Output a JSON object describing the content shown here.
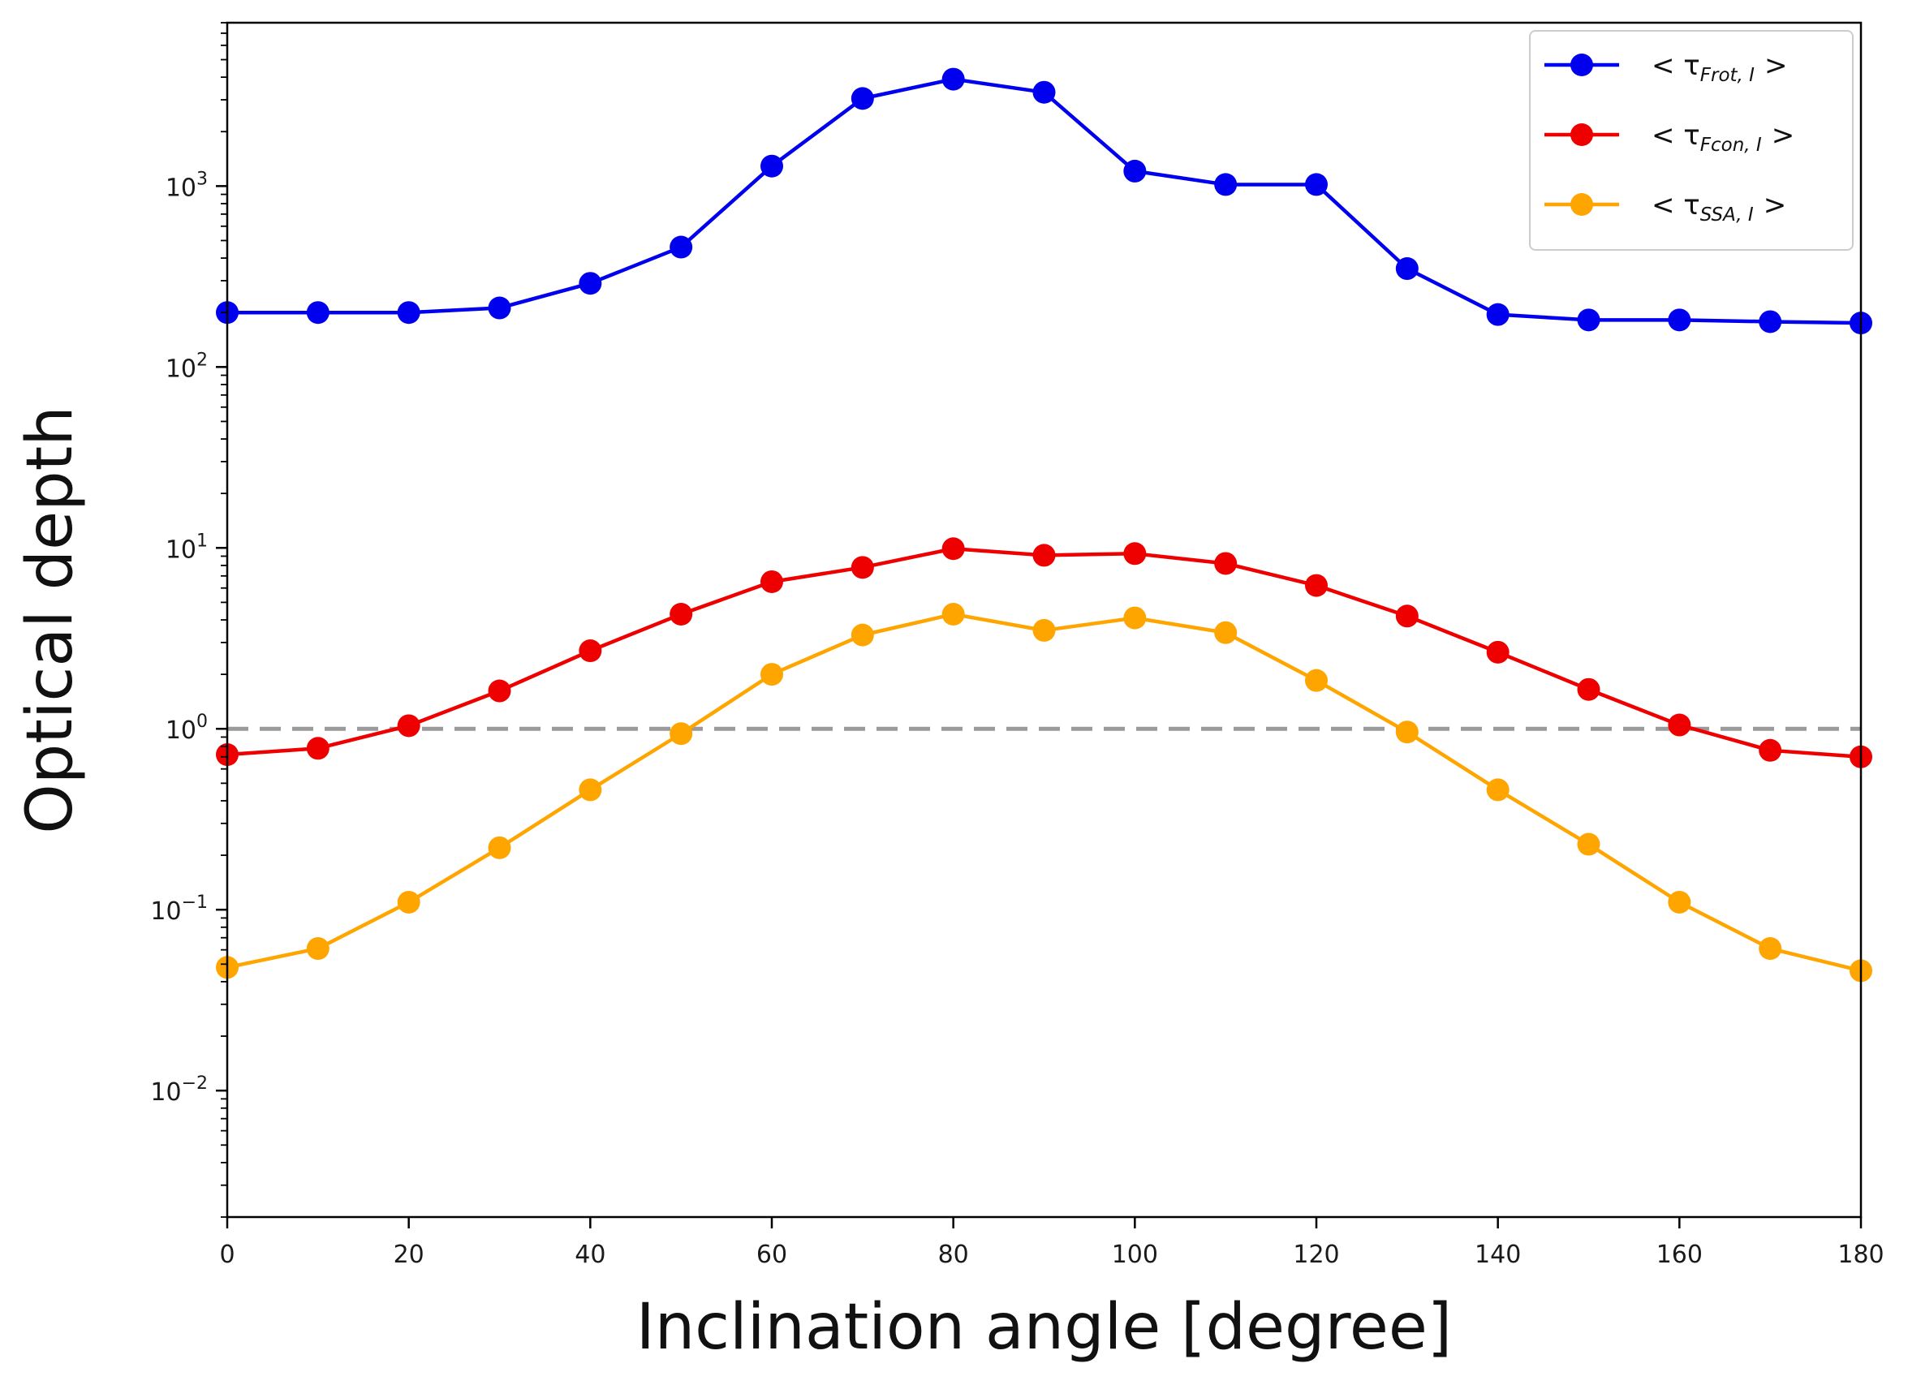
{
  "chart_data": {
    "type": "line",
    "title": "",
    "xlabel": "Inclination angle [degree]",
    "ylabel": "Optical depth",
    "yscale": "log",
    "xlim": [
      0,
      180
    ],
    "ylim": [
      0.002,
      8000
    ],
    "grid": false,
    "legend_position": "top-right",
    "x_ticks": [
      "0",
      "20",
      "40",
      "60",
      "80",
      "100",
      "120",
      "140",
      "160",
      "180"
    ],
    "y_ticks": [
      {
        "base": "10",
        "exp": "−2"
      },
      {
        "base": "10",
        "exp": "−1"
      },
      {
        "base": "10",
        "exp": "0"
      },
      {
        "base": "10",
        "exp": "1"
      },
      {
        "base": "10",
        "exp": "2"
      },
      {
        "base": "10",
        "exp": "3"
      }
    ],
    "reference_line": {
      "y": 1.0,
      "style": "dashed",
      "color": "#9a9a9a"
    },
    "x": [
      0,
      10,
      20,
      30,
      40,
      50,
      60,
      70,
      80,
      90,
      100,
      110,
      120,
      130,
      140,
      150,
      160,
      170,
      180
    ],
    "series": [
      {
        "legend": {
          "open": "< τ",
          "sub": "Frot,⁣ I",
          "close": ">"
        },
        "color": "#0000ee",
        "values": [
          200,
          200,
          200,
          212,
          290,
          460,
          1290,
          3050,
          3900,
          3300,
          1210,
          1020,
          1020,
          350,
          195,
          182,
          182,
          178,
          175
        ]
      },
      {
        "legend": {
          "open": "< τ",
          "sub": "Fcon,⁣ I",
          "close": ">"
        },
        "color": "#ee0000",
        "values": [
          0.72,
          0.78,
          1.04,
          1.62,
          2.7,
          4.3,
          6.5,
          7.8,
          9.9,
          9.1,
          9.3,
          8.2,
          6.2,
          4.2,
          2.65,
          1.65,
          1.05,
          0.76,
          0.7
        ]
      },
      {
        "legend": {
          "open": "< τ",
          "sub": "SSA,⁣ I",
          "close": ">"
        },
        "color": "#ffa500",
        "values": [
          0.048,
          0.061,
          0.11,
          0.22,
          0.46,
          0.94,
          2.0,
          3.3,
          4.3,
          3.5,
          4.1,
          3.4,
          1.85,
          0.96,
          0.46,
          0.23,
          0.11,
          0.061,
          0.046
        ]
      }
    ]
  }
}
